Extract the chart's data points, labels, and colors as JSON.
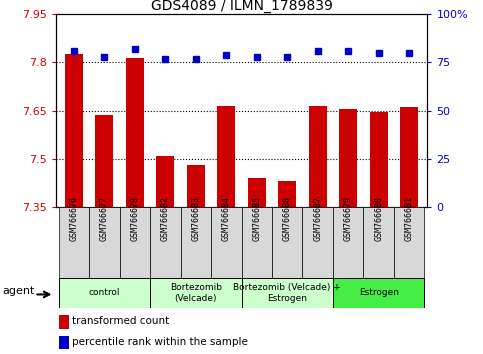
{
  "title": "GDS4089 / ILMN_1789839",
  "samples": [
    "GSM766676",
    "GSM766677",
    "GSM766678",
    "GSM766682",
    "GSM766683",
    "GSM766684",
    "GSM766685",
    "GSM766686",
    "GSM766687",
    "GSM766679",
    "GSM766680",
    "GSM766681"
  ],
  "bar_values": [
    7.825,
    7.635,
    7.815,
    7.51,
    7.48,
    7.665,
    7.44,
    7.43,
    7.665,
    7.655,
    7.645,
    7.66
  ],
  "percentile_values": [
    81,
    78,
    82,
    77,
    77,
    79,
    78,
    78,
    81,
    81,
    80,
    80
  ],
  "bar_color": "#cc0000",
  "percentile_color": "#0000cc",
  "ylim_left": [
    7.35,
    7.95
  ],
  "ylim_right": [
    0,
    100
  ],
  "yticks_left": [
    7.35,
    7.5,
    7.65,
    7.8,
    7.95
  ],
  "yticks_right": [
    0,
    25,
    50,
    75,
    100
  ],
  "ylabel_left_color": "#cc0000",
  "ylabel_right_color": "#0000cc",
  "group_labels": [
    "control",
    "Bortezomib\n(Velcade)",
    "Bortezomib (Velcade) +\nEstrogen",
    "Estrogen"
  ],
  "group_ranges": [
    [
      0,
      2
    ],
    [
      3,
      5
    ],
    [
      6,
      8
    ],
    [
      9,
      11
    ]
  ],
  "group_facecolors": [
    "#ccffcc",
    "#ccffcc",
    "#ccffcc",
    "#44ee44"
  ],
  "agent_label": "agent",
  "legend_red_label": "transformed count",
  "legend_blue_label": "percentile rank within the sample",
  "background_color": "#ffffff",
  "bar_width": 0.6,
  "grid_yticks": [
    7.5,
    7.65,
    7.8
  ]
}
